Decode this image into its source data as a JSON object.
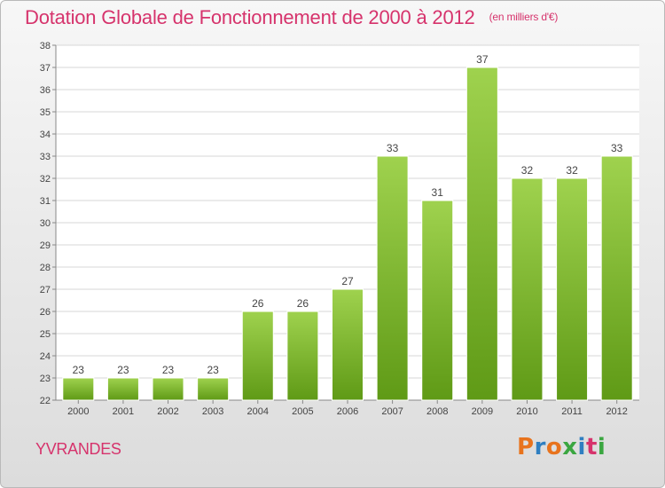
{
  "title": "Dotation Globale de Fonctionnement de 2000 à 2012",
  "unit_note": "(en milliers d'€)",
  "commune": "YVRANDES",
  "logo": {
    "text": "Proxiti",
    "letter_colors": [
      "#e8731d",
      "#2f7fc1",
      "#e8731d",
      "#3aa640",
      "#2f7fc1",
      "#d6336c",
      "#3aa640"
    ]
  },
  "colors": {
    "bar_top": "#9fd24e",
    "bar_bottom": "#5f9a16",
    "accent": "#d6336c"
  },
  "chart_data": {
    "type": "bar",
    "title": "Dotation Globale de Fonctionnement de 2000 à 2012",
    "ylabel": "(en milliers d'€)",
    "xlabel": "",
    "categories": [
      "2000",
      "2001",
      "2002",
      "2003",
      "2004",
      "2005",
      "2006",
      "2007",
      "2008",
      "2009",
      "2010",
      "2011",
      "2012"
    ],
    "values": [
      23,
      23,
      23,
      23,
      26,
      26,
      27,
      33,
      31,
      37,
      32,
      32,
      33
    ],
    "ylim": [
      22,
      38
    ],
    "yticks": [
      22,
      23,
      24,
      25,
      26,
      27,
      28,
      29,
      30,
      31,
      32,
      33,
      34,
      35,
      36,
      37,
      38
    ],
    "grid": true,
    "legend": "none"
  }
}
